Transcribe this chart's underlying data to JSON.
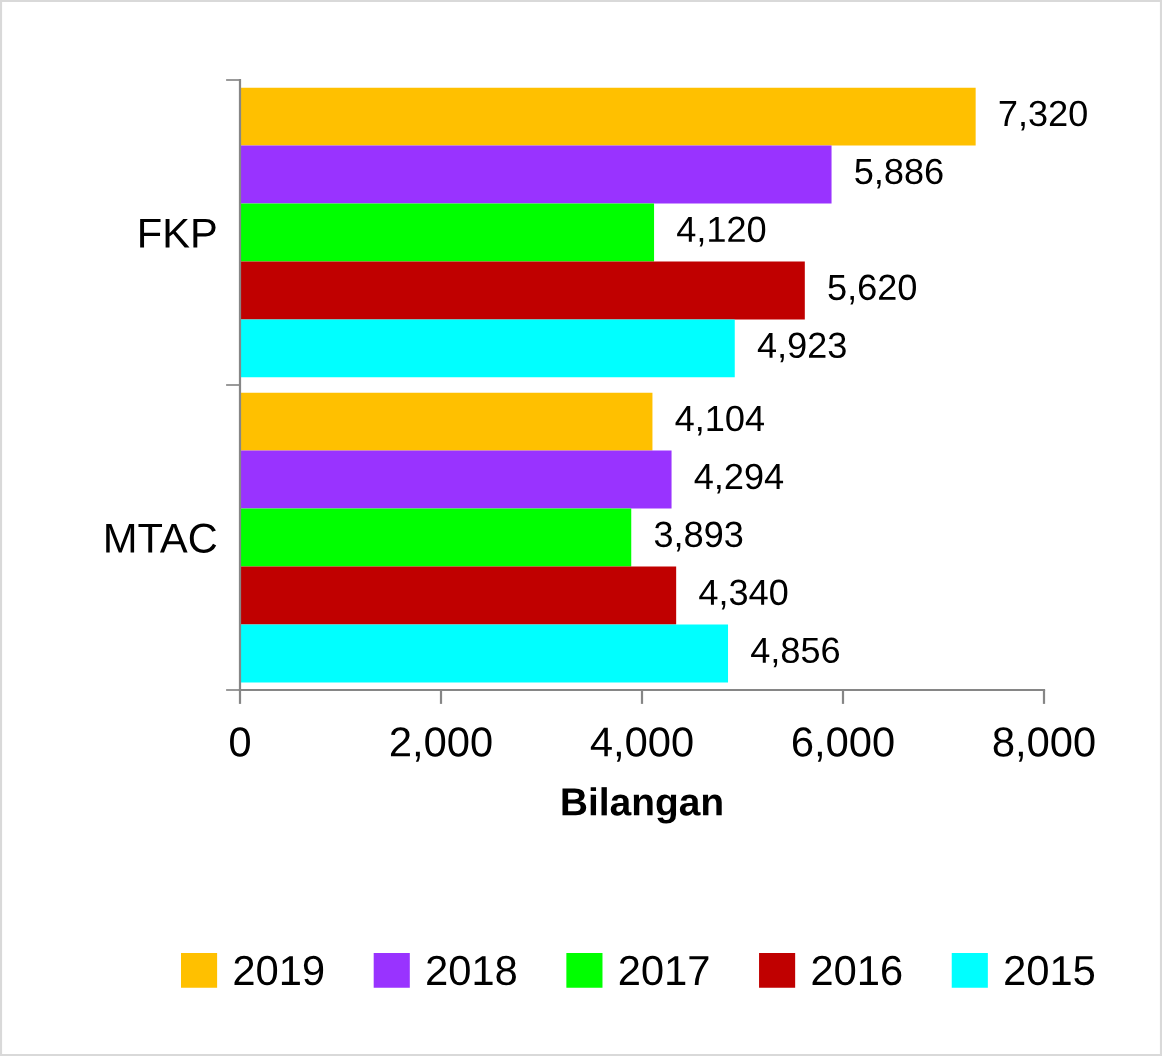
{
  "chart_data": {
    "type": "bar",
    "orientation": "horizontal",
    "categories": [
      "FKP",
      "MTAC"
    ],
    "series": [
      {
        "name": "2019",
        "color": "#ffc000",
        "values": [
          7320,
          4104
        ],
        "value_labels": [
          "7,320",
          "4,104"
        ]
      },
      {
        "name": "2018",
        "color": "#9933ff",
        "values": [
          5886,
          4294
        ],
        "value_labels": [
          "5,886",
          "4,294"
        ]
      },
      {
        "name": "2017",
        "color": "#00ff00",
        "values": [
          4120,
          3893
        ],
        "value_labels": [
          "4,120",
          "3,893"
        ]
      },
      {
        "name": "2016",
        "color": "#c00000",
        "values": [
          5620,
          4340
        ],
        "value_labels": [
          "5,620",
          "4,340"
        ]
      },
      {
        "name": "2015",
        "color": "#00ffff",
        "values": [
          4923,
          4856
        ],
        "value_labels": [
          "4,923",
          "4,856"
        ]
      }
    ],
    "xlabel": "Bilangan",
    "xlim": [
      0,
      8000
    ],
    "xticks": [
      0,
      {
        "value": 2000,
        "label": "2,000"
      },
      {
        "value": 4000,
        "label": "4,000"
      },
      {
        "value": 6000,
        "label": "6,000"
      },
      {
        "value": 8000,
        "label": "8,000"
      }
    ],
    "grid": false,
    "legend": "bottom"
  }
}
